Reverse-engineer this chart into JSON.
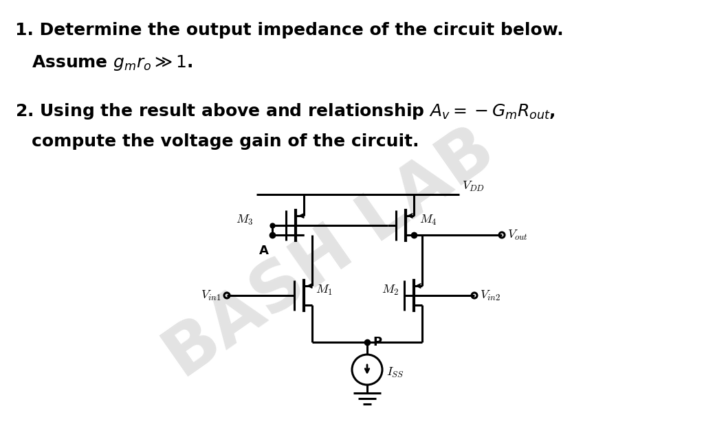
{
  "background_color": "#ffffff",
  "fig_width": 10.24,
  "fig_height": 6.52,
  "text_color": "#000000",
  "watermark_text": "BASH LAB",
  "watermark_color": "#b0b0b0",
  "watermark_alpha": 0.35,
  "q1_line1": "1. Determine the output impedance of the circuit below.",
  "q1_line2": "Assume $g_mr_o \\gg 1$.",
  "q2_line1": "2. Using the result above and relationship $A_v = -G_mR_{out}$,",
  "q2_line2": "   compute the voltage gain of the circuit."
}
